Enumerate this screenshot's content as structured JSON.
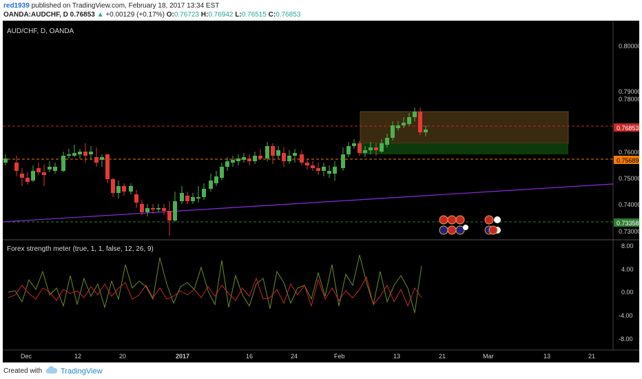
{
  "header": {
    "user": "red1939",
    "published_text": "published on TradingView.com, February 18, 2017 13:34 EST",
    "symbol": "OANDA:AUDCHF, D",
    "price": "0.76853",
    "arrow": "▲",
    "change": "+0.00129 (+0.17%)",
    "o_label": "O:",
    "o_value": "0.76723",
    "h_label": "H:",
    "h_value": "0.76942",
    "l_label": "L:",
    "l_value": "0.76515",
    "c_label": "C:",
    "c_value": "0.76853"
  },
  "chart": {
    "title": "AUD/CHF, D, OANDA",
    "price_ticks": [
      "0.80000",
      "0.79000",
      "0.78000",
      "0.76000",
      "0.75000",
      "0.74000",
      "0.73000"
    ],
    "price_tags": [
      "0.76853",
      "0.75689",
      "0.73358"
    ],
    "indicator_title": "Forex strength meter (true, 1, 1, false, 12, 26, 9)",
    "indicator_ticks": [
      "8.00",
      "4.00",
      "0.00",
      "-4.00",
      "-8.00"
    ],
    "time_ticks": [
      "Dec",
      "12",
      "20",
      "2017",
      "16",
      "24",
      "Feb",
      "13",
      "21",
      "Mar",
      "13",
      "21"
    ],
    "colors": {
      "up": "#4caf50",
      "down": "#e53935",
      "trend": "#8a2be2",
      "rect_top": "#3a2a10",
      "rect_bottom": "#0c3a0c"
    }
  },
  "footer": {
    "created_with": "Created with",
    "brand": "TradingView"
  }
}
